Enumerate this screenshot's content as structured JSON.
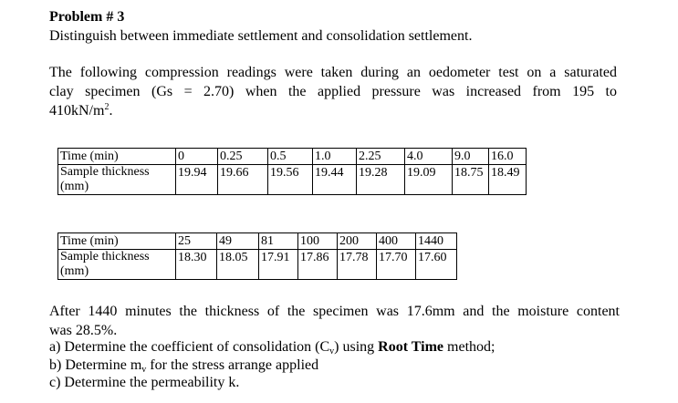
{
  "problem_title": "Problem # 3",
  "question": "Distinguish between immediate settlement and consolidation settlement.",
  "intro": {
    "line1": "The following compression readings were taken during an oedometer test on a saturated",
    "line2": "clay specimen (Gs = 2.70) when the applied pressure was increased from 195 to",
    "line3_value": "410kN/m",
    "line3_sup": "2",
    "line3_end": "."
  },
  "table1": {
    "time_label": "Time (min)",
    "thickness_label": "Sample thickness (mm)",
    "times": [
      "0",
      "0.25",
      "0.5",
      "1.0",
      "2.25",
      "4.0",
      "9.0",
      "16.0"
    ],
    "thickness": [
      "19.94",
      "19.66",
      "19.56",
      "19.44",
      "19.28",
      "19.09",
      "18.75",
      "18.49"
    ]
  },
  "table2": {
    "time_label": "Time (min)",
    "thickness_label": "Sample thickness (mm)",
    "times": [
      "25",
      "49",
      "81",
      "100",
      "200",
      "400",
      "1440"
    ],
    "thickness": [
      "18.30",
      "18.05",
      "17.91",
      "17.86",
      "17.78",
      "17.70",
      "17.60"
    ]
  },
  "after": {
    "line1": "After 1440 minutes the thickness of the specimen was 17.6mm and the moisture content",
    "line2": "was 28.5%."
  },
  "tasks": {
    "a_prefix": "a)  Determine the coefficient of consolidation (C",
    "a_sub": "v",
    "a_mid": ") using ",
    "a_bold": "Root Time",
    "a_end": " method;",
    "b_prefix": "b)  Determine m",
    "b_sub": "v",
    "b_end": " for the stress arrange applied",
    "c": "c)  Determine the permeability k."
  }
}
